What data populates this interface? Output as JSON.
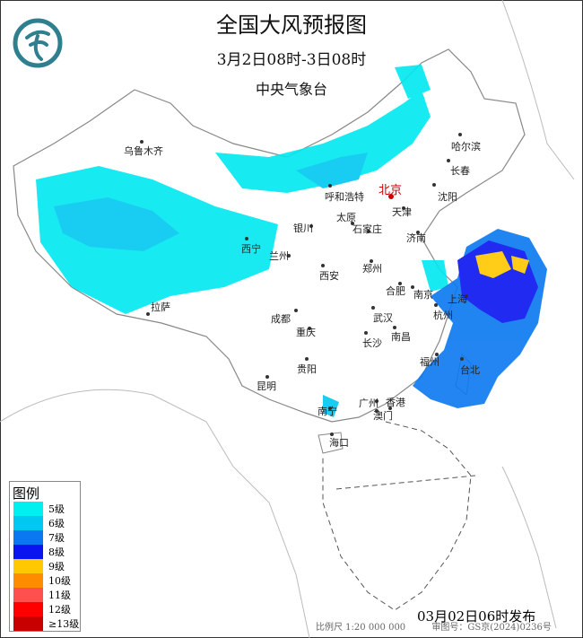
{
  "title": "全国大风预报图",
  "period": "3月2日08时-3日08时",
  "issuer": "中央气象台",
  "logo": {
    "icon": "cma-logo-icon",
    "color": "#2f7f8f"
  },
  "cities": [
    {
      "name": "乌鲁木齐",
      "capital": false
    },
    {
      "name": "哈尔滨",
      "capital": false
    },
    {
      "name": "长春",
      "capital": false
    },
    {
      "name": "沈阳",
      "capital": false
    },
    {
      "name": "呼和浩特",
      "capital": false
    },
    {
      "name": "北京",
      "capital": true
    },
    {
      "name": "天津",
      "capital": false
    },
    {
      "name": "银川",
      "capital": false
    },
    {
      "name": "太原",
      "capital": false
    },
    {
      "name": "石家庄",
      "capital": false
    },
    {
      "name": "济南",
      "capital": false
    },
    {
      "name": "西宁",
      "capital": false
    },
    {
      "name": "兰州",
      "capital": false
    },
    {
      "name": "西安",
      "capital": false
    },
    {
      "name": "郑州",
      "capital": false
    },
    {
      "name": "合肥",
      "capital": false
    },
    {
      "name": "南京",
      "capital": false
    },
    {
      "name": "上海",
      "capital": false
    },
    {
      "name": "拉萨",
      "capital": false
    },
    {
      "name": "成都",
      "capital": false
    },
    {
      "name": "武汉",
      "capital": false
    },
    {
      "name": "杭州",
      "capital": false
    },
    {
      "name": "重庆",
      "capital": false
    },
    {
      "name": "长沙",
      "capital": false
    },
    {
      "name": "南昌",
      "capital": false
    },
    {
      "name": "福州",
      "capital": false
    },
    {
      "name": "贵阳",
      "capital": false
    },
    {
      "name": "台北",
      "capital": false
    },
    {
      "name": "昆明",
      "capital": false
    },
    {
      "name": "广州",
      "capital": false
    },
    {
      "name": "香港",
      "capital": false
    },
    {
      "name": "澳门",
      "capital": false
    },
    {
      "name": "南宁",
      "capital": false
    },
    {
      "name": "海口",
      "capital": false
    }
  ],
  "legend": {
    "title": "图例",
    "items": [
      {
        "label": "5级",
        "color": "#00f0f0"
      },
      {
        "label": "6级",
        "color": "#00c8f0"
      },
      {
        "label": "7级",
        "color": "#0a78f0"
      },
      {
        "label": "8级",
        "color": "#0a14f0"
      },
      {
        "label": "9级",
        "color": "#ffc800"
      },
      {
        "label": "10级",
        "color": "#ff8c00"
      },
      {
        "label": "11级",
        "color": "#ff5050"
      },
      {
        "label": "12级",
        "color": "#ff0000"
      },
      {
        "label": "≥13级",
        "color": "#c80000"
      }
    ]
  },
  "issued": "03月02日06时发布",
  "scale": "比例尺 1:20 000 000",
  "map_approval": "审图号：GS京(2024)0236号"
}
